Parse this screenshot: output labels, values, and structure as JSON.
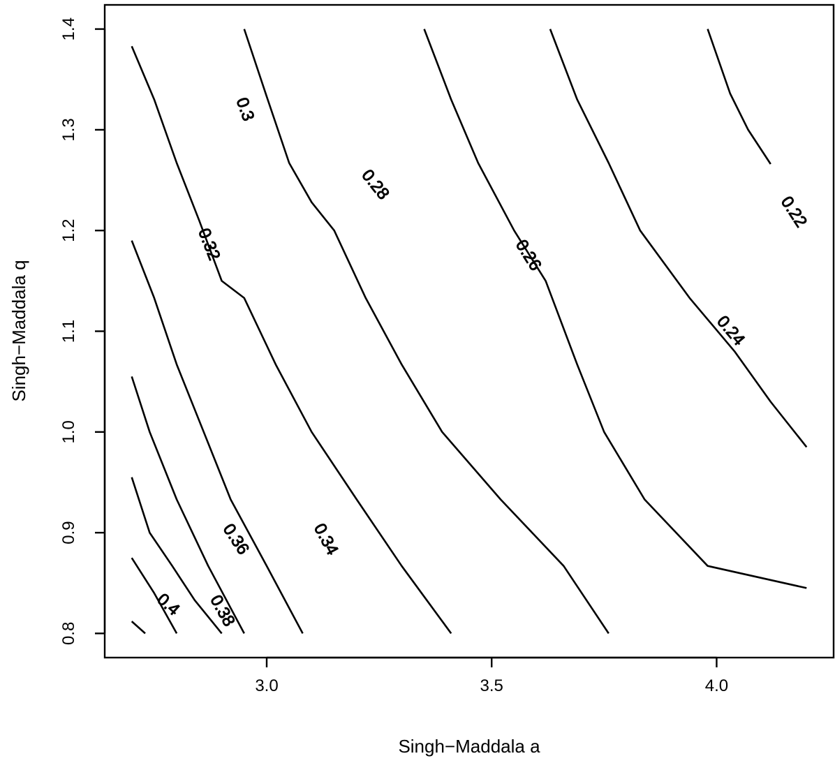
{
  "chart_data": {
    "type": "contour",
    "title": "",
    "xlabel": "Singh−Maddala a",
    "ylabel": "Singh−Maddala q",
    "xlim": [
      2.64,
      4.26
    ],
    "ylim": [
      0.776,
      1.424
    ],
    "x_ticks": [
      3.0,
      3.5,
      4.0
    ],
    "y_ticks": [
      0.8,
      0.9,
      1.0,
      1.1,
      1.2,
      1.3,
      1.4
    ],
    "x_tick_labels": [
      "3.0",
      "3.5",
      "4.0"
    ],
    "y_tick_labels": [
      "0.8",
      "0.9",
      "1.0",
      "1.1",
      "1.2",
      "1.3",
      "1.4"
    ],
    "grid": false,
    "legend": "none",
    "line_color": "#000000",
    "contours": [
      {
        "level": 0.22,
        "label": "0.22",
        "label_at": [
          4.17,
          1.218
        ],
        "points": [
          [
            3.98,
            1.4
          ],
          [
            4.03,
            1.336
          ],
          [
            4.07,
            1.3
          ],
          [
            4.12,
            1.266
          ]
        ]
      },
      {
        "level": 0.24,
        "label": "0.24",
        "label_at": [
          4.03,
          1.1
        ],
        "points": [
          [
            3.63,
            1.4
          ],
          [
            3.69,
            1.33
          ],
          [
            3.76,
            1.267
          ],
          [
            3.83,
            1.2
          ],
          [
            3.94,
            1.133
          ],
          [
            4.04,
            1.08
          ],
          [
            4.12,
            1.03
          ],
          [
            4.2,
            0.985
          ]
        ]
      },
      {
        "level": 0.26,
        "label": "0.26",
        "label_at": [
          3.58,
          1.175
        ],
        "points": [
          [
            3.35,
            1.4
          ],
          [
            3.41,
            1.33
          ],
          [
            3.47,
            1.267
          ],
          [
            3.55,
            1.2
          ],
          [
            3.62,
            1.15
          ],
          [
            3.69,
            1.067
          ],
          [
            3.75,
            1.0
          ],
          [
            3.84,
            0.933
          ],
          [
            3.98,
            0.867
          ],
          [
            4.2,
            0.845
          ]
        ]
      },
      {
        "level": 0.28,
        "label": "0.28",
        "label_at": [
          3.24,
          1.245
        ],
        "points": [
          [
            2.95,
            1.4
          ],
          [
            3.0,
            1.333
          ],
          [
            3.05,
            1.267
          ],
          [
            3.1,
            1.228
          ],
          [
            3.15,
            1.2
          ],
          [
            3.22,
            1.133
          ],
          [
            3.3,
            1.067
          ],
          [
            3.39,
            1.0
          ],
          [
            3.52,
            0.933
          ],
          [
            3.66,
            0.867
          ],
          [
            3.76,
            0.8
          ]
        ]
      },
      {
        "level": 0.3,
        "label": "0.3",
        "label_at": [
          2.95,
          1.32
        ],
        "points": [
          [
            2.7,
            1.383
          ],
          [
            2.75,
            1.33
          ],
          [
            2.8,
            1.267
          ],
          [
            2.85,
            1.21
          ],
          [
            2.9,
            1.15
          ],
          [
            2.95,
            1.133
          ],
          [
            3.02,
            1.067
          ],
          [
            3.1,
            1.0
          ],
          [
            3.2,
            0.933
          ],
          [
            3.3,
            0.867
          ],
          [
            3.41,
            0.8
          ]
        ]
      },
      {
        "level": 0.32,
        "label": "0.32",
        "label_at": [
          2.87,
          1.186
        ],
        "points": [
          [
            2.7,
            1.19
          ],
          [
            2.75,
            1.133
          ],
          [
            2.8,
            1.067
          ],
          [
            2.86,
            1.0
          ],
          [
            2.92,
            0.933
          ],
          [
            3.0,
            0.867
          ],
          [
            3.08,
            0.8
          ]
        ]
      },
      {
        "level": 0.34,
        "label": "0.34",
        "label_at": [
          3.13,
          0.893
        ],
        "points": [
          [
            2.7,
            1.055
          ],
          [
            2.74,
            1.0
          ],
          [
            2.8,
            0.933
          ],
          [
            2.87,
            0.867
          ],
          [
            2.95,
            0.8
          ]
        ]
      },
      {
        "level": 0.36,
        "label": "0.36",
        "label_at": [
          2.93,
          0.893
        ],
        "points": [
          [
            2.7,
            0.955
          ],
          [
            2.74,
            0.9
          ],
          [
            2.79,
            0.867
          ],
          [
            2.84,
            0.833
          ],
          [
            2.9,
            0.8
          ]
        ]
      },
      {
        "level": 0.38,
        "label": "0.38",
        "label_at": [
          2.9,
          0.822
        ],
        "points": [
          [
            2.7,
            0.875
          ],
          [
            2.75,
            0.84
          ],
          [
            2.8,
            0.8
          ]
        ]
      },
      {
        "level": 0.4,
        "label": "0.4",
        "label_at": [
          2.78,
          0.828
        ],
        "points": [
          [
            2.7,
            0.812
          ],
          [
            2.73,
            0.8
          ]
        ]
      }
    ]
  }
}
